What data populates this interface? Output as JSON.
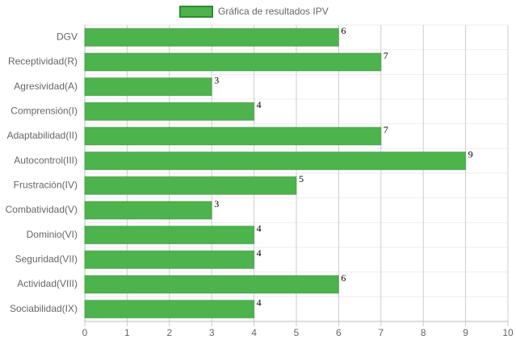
{
  "chart_data": {
    "type": "bar",
    "orientation": "horizontal",
    "legend": "Gráfica de resultados IPV",
    "categories": [
      "DGV",
      "Receptividad(R)",
      "Agresividad(A)",
      "Comprensión(I)",
      "Adaptabilidad(II)",
      "Autocontrol(III)",
      "Frustración(IV)",
      "Combatividad(V)",
      "Dominio(VI)",
      "Seguridad(VII)",
      "Actividad(VIII)",
      "Sociabilidad(IX)"
    ],
    "values": [
      6,
      7,
      3,
      4,
      7,
      9,
      5,
      3,
      4,
      4,
      6,
      4
    ],
    "color": "#4db34d",
    "border_color": "#2e8b2e",
    "xlim": [
      0,
      10
    ],
    "xticks": [
      0,
      1,
      2,
      3,
      4,
      5,
      6,
      7,
      8,
      9,
      10
    ],
    "grid": true
  }
}
